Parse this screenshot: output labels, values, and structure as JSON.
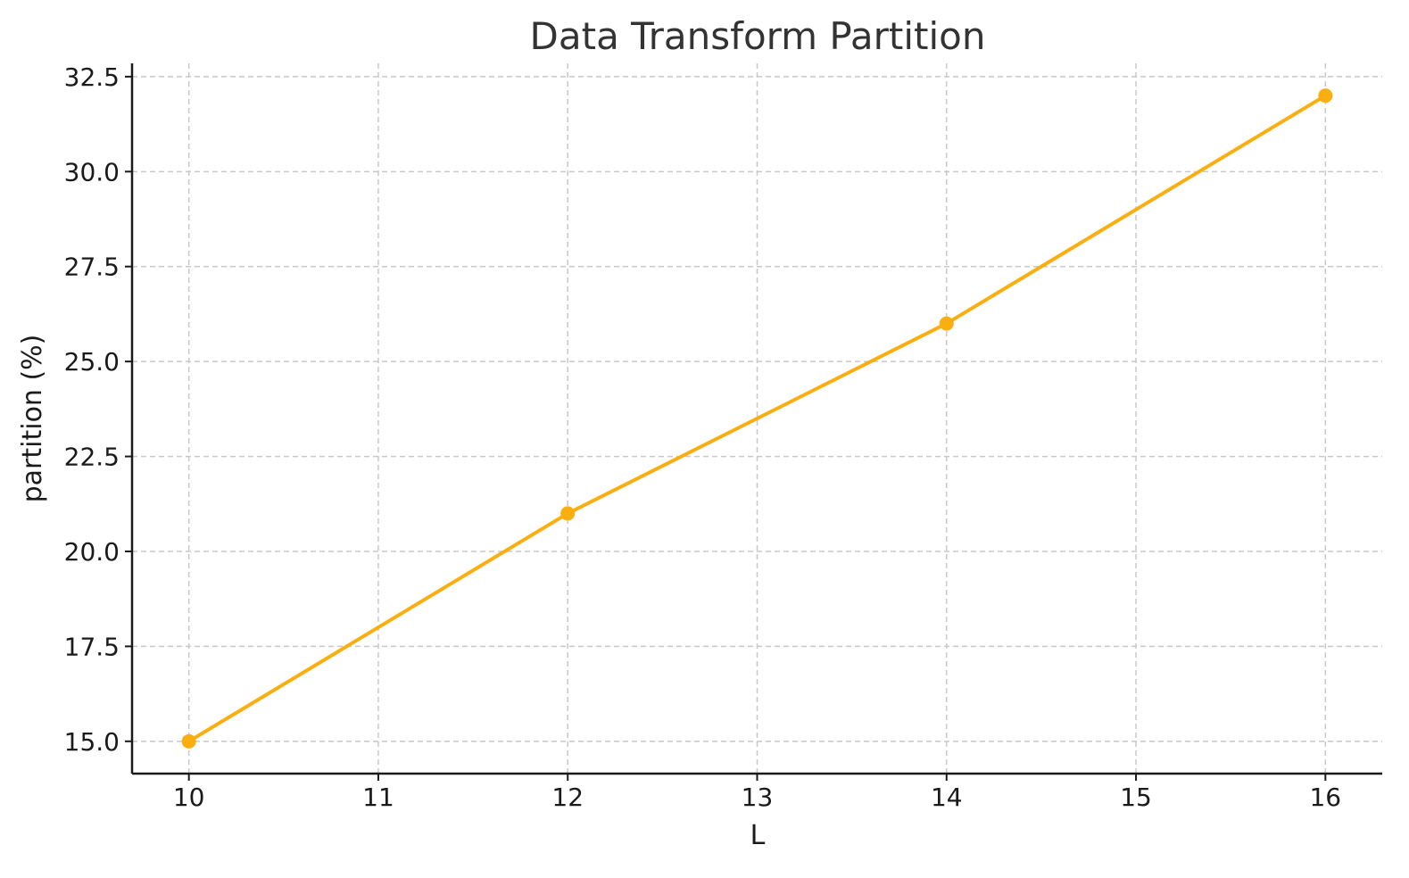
{
  "chart_data": {
    "type": "line",
    "title": "Data Transform Partition",
    "xlabel": "L",
    "ylabel": "partition (%)",
    "x": [
      10,
      12,
      14,
      16
    ],
    "series": [
      {
        "values": [
          15.0,
          21.0,
          26.0,
          32.0
        ],
        "color": "#FBAE0F"
      }
    ],
    "xticks": [
      "10",
      "11",
      "12",
      "13",
      "14",
      "15",
      "16"
    ],
    "xtick_values": [
      10,
      11,
      12,
      13,
      14,
      15,
      16
    ],
    "yticks": [
      "15.0",
      "17.5",
      "20.0",
      "22.5",
      "25.0",
      "27.5",
      "30.0",
      "32.5"
    ],
    "ytick_values": [
      15.0,
      17.5,
      20.0,
      22.5,
      25.0,
      27.5,
      30.0,
      32.5
    ],
    "xlim": [
      9.7,
      16.3
    ],
    "ylim": [
      14.15,
      32.85
    ],
    "grid": true,
    "grid_style": "dashed"
  }
}
